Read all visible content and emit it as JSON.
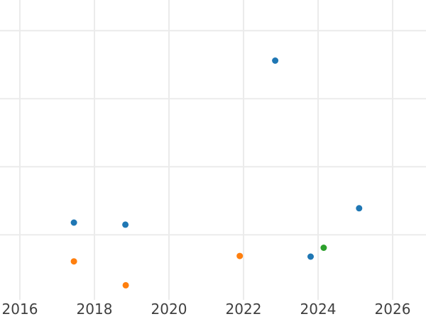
{
  "figure": {
    "background_color": "#ffffff",
    "grid_color": "#ebebeb",
    "tick_label_color": "#3f3f3f"
  },
  "chart_data": {
    "type": "scatter",
    "title": "",
    "subtitle": "",
    "xlabel": "",
    "ylabel": "",
    "grid": true,
    "legend": "none",
    "x_ticks": [
      2016,
      2018,
      2020,
      2022,
      2024,
      2026
    ],
    "x_tick_labels": [
      "2016",
      "2018",
      "2020",
      "2022",
      "2024",
      "2026"
    ],
    "x_range": [
      2015.467,
      2026.895
    ],
    "y_range": [
      0.045,
      4.45
    ],
    "y_gridlines": [
      1,
      2,
      3,
      4
    ],
    "y_tick_labels_visible": false,
    "marker": {
      "shape": "circle",
      "radius_px": 4.5
    },
    "series": [
      {
        "name": "series-blue",
        "color": "#1f77b4",
        "points": [
          {
            "x": 2017.45,
            "y": 1.18
          },
          {
            "x": 2018.83,
            "y": 1.15
          },
          {
            "x": 2022.85,
            "y": 3.56
          },
          {
            "x": 2023.8,
            "y": 0.68
          },
          {
            "x": 2025.1,
            "y": 1.39
          }
        ]
      },
      {
        "name": "series-orange",
        "color": "#ff7f0e",
        "points": [
          {
            "x": 2017.45,
            "y": 0.61
          },
          {
            "x": 2018.84,
            "y": 0.26
          },
          {
            "x": 2021.9,
            "y": 0.69
          }
        ]
      },
      {
        "name": "series-green",
        "color": "#2ca02c",
        "points": [
          {
            "x": 2024.15,
            "y": 0.81
          }
        ]
      }
    ]
  }
}
